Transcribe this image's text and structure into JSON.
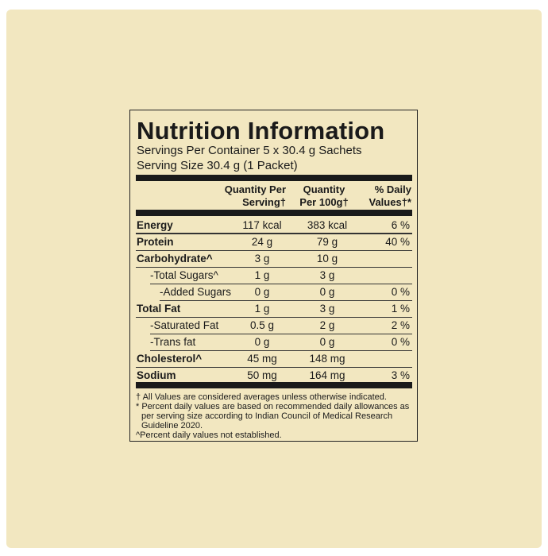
{
  "label": {
    "title": "Nutrition Information",
    "servings_per_container": "Servings Per Container 5 x 30.4 g Sachets",
    "serving_size": "Serving Size 30.4 g (1 Packet)",
    "columns": [
      "Quantity Per Serving†",
      "Quantity Per 100g†",
      "% Daily Values†*"
    ],
    "rows": [
      [
        "Energy",
        "117 kcal",
        "383 kcal",
        "6 %"
      ],
      [
        "Protein",
        "24 g",
        "79 g",
        "40 %"
      ],
      [
        "Carbohydrate^",
        "3 g",
        "10 g",
        null
      ],
      [
        "-Total Sugars^",
        "1 g",
        "3 g",
        null
      ],
      [
        "-Added Sugars",
        "0 g",
        "0 g",
        "0 %"
      ],
      [
        "Total Fat",
        "1 g",
        "3 g",
        "1 %"
      ],
      [
        "-Saturated Fat",
        "0.5 g",
        "2 g",
        "2 %"
      ],
      [
        "-Trans fat",
        "0 g",
        "0 g",
        "0 %"
      ],
      [
        "Cholesterol^",
        "45 mg",
        "148 mg",
        null
      ],
      [
        "Sodium",
        "50 mg",
        "164 mg",
        "3 %"
      ]
    ],
    "footnotes": [
      "† All Values are considered averages unless otherwise indicated.",
      "* Percent daily values are based on recommended daily allowances as per serving size according to Indian Council of Medical Research Guideline 2020.",
      "^Percent daily values not established."
    ]
  }
}
